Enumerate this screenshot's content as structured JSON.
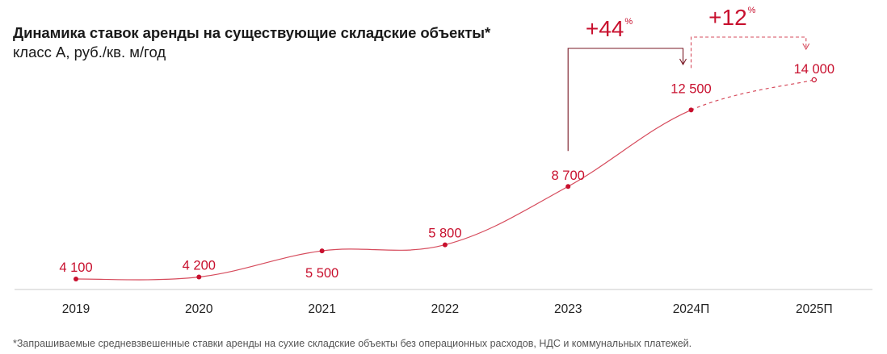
{
  "title": "Динамика ставок аренды на существующие складские объекты*",
  "subtitle": "класс А, руб./кв. м/год",
  "footnote": "*Запрашиваемые средневзвешенные ставки аренды на сухие складские объекты без операционных расходов, НДС и коммунальных платежей.",
  "colors": {
    "accent": "#c8102e",
    "line": "#d64b5c",
    "axis": "#c8c8c8",
    "tick_text": "#222222"
  },
  "chart_data": {
    "type": "line",
    "title": "Динамика ставок аренды на существующие складские объекты*",
    "ylabel": "класс А, руб./кв. м/год",
    "categories": [
      "2019",
      "2020",
      "2021",
      "2022",
      "2023",
      "2024П",
      "2025П"
    ],
    "values": [
      4100,
      4200,
      5500,
      5800,
      8700,
      12500,
      14000
    ],
    "value_labels": [
      "4 100",
      "4 200",
      "5 500",
      "5 800",
      "8 700",
      "12 500",
      "14 000"
    ],
    "forecast_from_index": 5,
    "ylim": [
      3800,
      14500
    ],
    "grid": false,
    "annotations": [
      {
        "text": "+44",
        "unit": "%",
        "from_index": 4,
        "to_index": 5,
        "style": "solid"
      },
      {
        "text": "+12",
        "unit": "%",
        "from_index": 5,
        "to_index": 6,
        "style": "dashed"
      }
    ]
  }
}
